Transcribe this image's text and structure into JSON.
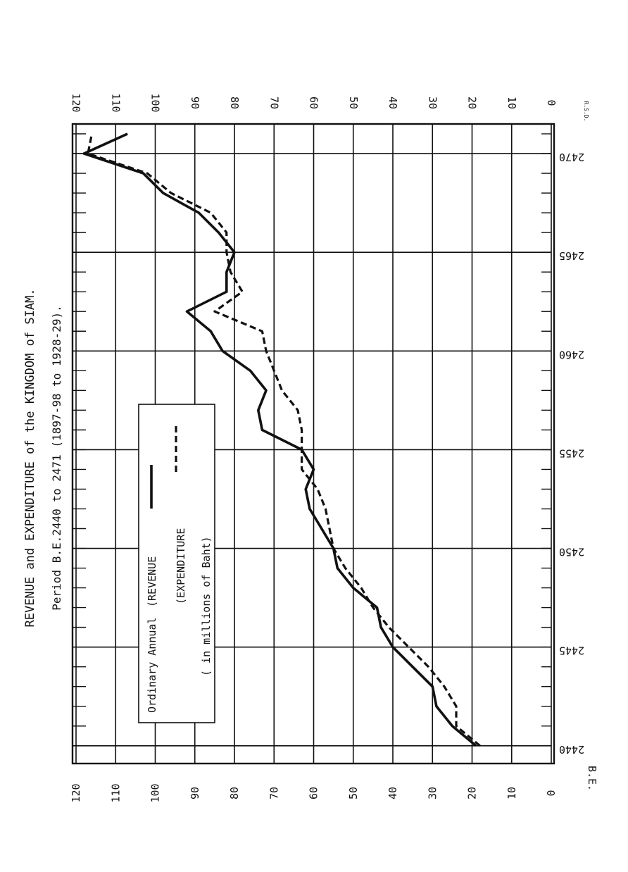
{
  "chart_data": {
    "type": "line",
    "title": "REVENUE and EXPENDITURE of the KINGDOM of SIAM.",
    "subtitle": "Period B.E.2440 to 2471 (1897-98 to 1928-29).",
    "xlabel": "B.E.",
    "x_ticks": [
      "2440",
      "2445",
      "2450",
      "2455",
      "2460",
      "2465",
      "2470"
    ],
    "y_ticks": [
      "0",
      "10",
      "20",
      "30",
      "40",
      "50",
      "60",
      "70",
      "80",
      "90",
      "100",
      "110",
      "120"
    ],
    "xlim": [
      2439.1,
      2471.5
    ],
    "ylim": [
      0,
      120
    ],
    "grid": true,
    "legend": {
      "prefix": "Ordinary Annual",
      "revenue_label": "(REVENUE",
      "expenditure_label": "(EXPENDITURE",
      "units": "( in millions of Baht)"
    },
    "corner_mark": "R.S.D.",
    "x": [
      2440,
      2441,
      2442,
      2443,
      2444,
      2445,
      2446,
      2447,
      2448,
      2449,
      2450,
      2451,
      2452,
      2453,
      2454,
      2455,
      2456,
      2457,
      2458,
      2459,
      2460,
      2461,
      2462,
      2463,
      2464,
      2465,
      2466,
      2467,
      2468,
      2469,
      2470,
      2471
    ],
    "series": [
      {
        "name": "REVENUE",
        "style": "solid",
        "values": [
          19,
          25,
          29,
          30,
          35,
          40,
          43,
          44,
          50,
          54,
          55,
          58,
          61,
          62,
          60,
          63,
          73,
          74,
          72,
          76,
          83,
          86,
          92,
          82,
          82,
          80,
          84,
          89,
          98,
          103,
          118,
          107
        ]
      },
      {
        "name": "EXPENDITURE",
        "style": "dashed",
        "values": [
          18,
          24,
          24,
          27,
          31,
          36,
          41,
          45,
          48,
          52,
          55,
          56,
          57,
          59,
          63,
          63,
          63,
          64,
          68,
          70,
          72,
          73,
          85,
          78,
          81,
          82,
          82,
          86,
          96,
          102,
          117,
          116
        ]
      }
    ]
  }
}
